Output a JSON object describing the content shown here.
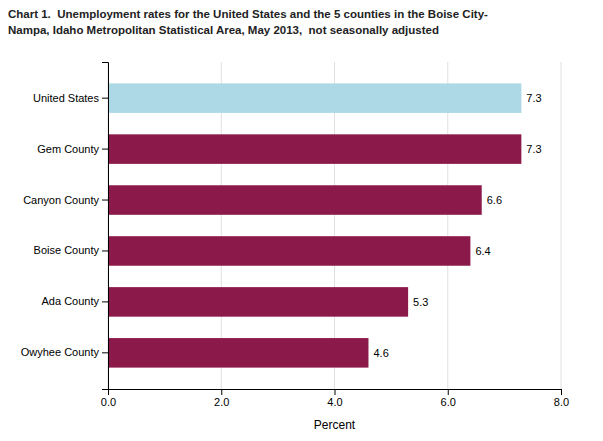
{
  "chart_data": {
    "type": "bar",
    "orientation": "horizontal",
    "title": "Chart 1.  Unemployment rates for the United States and the 5 counties in the Boise City-\nNampa, Idaho Metropolitan Statistical Area, May 2013,  not seasonally adjusted",
    "categories": [
      "United States",
      "Gem County",
      "Canyon County",
      "Boise County",
      "Ada County",
      "Owyhee County"
    ],
    "values": [
      7.3,
      7.3,
      6.6,
      6.4,
      5.3,
      4.6
    ],
    "colors": [
      "#add8e6",
      "#8b1a4a",
      "#8b1a4a",
      "#8b1a4a",
      "#8b1a4a",
      "#8b1a4a"
    ],
    "xlabel": "Percent",
    "xlim": [
      0,
      8.0
    ],
    "xticks": [
      {
        "value": 0,
        "label": "0.0"
      },
      {
        "value": 2,
        "label": "2.0"
      },
      {
        "value": 4,
        "label": "4.0"
      },
      {
        "value": 6,
        "label": "6.0"
      },
      {
        "value": 8,
        "label": "8.0"
      }
    ],
    "grid": true,
    "data_labels": true
  }
}
